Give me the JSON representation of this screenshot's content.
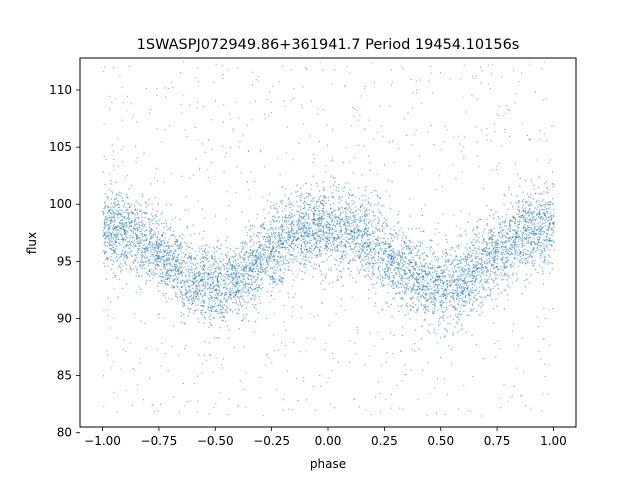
{
  "chart_data": {
    "type": "scatter",
    "title": "1SWASPJ072949.86+361941.7 Period 19454.10156s",
    "xlabel": "phase",
    "ylabel": "flux",
    "xlim": [
      -1.1,
      1.1
    ],
    "ylim": [
      80.5,
      112.8
    ],
    "x_ticks": [
      -1.0,
      -0.75,
      -0.5,
      -0.25,
      0.0,
      0.25,
      0.5,
      0.75,
      1.0
    ],
    "x_tick_labels": [
      "−1.00",
      "−0.75",
      "−0.50",
      "−0.25",
      "0.00",
      "0.25",
      "0.50",
      "0.75",
      "1.00"
    ],
    "y_ticks": [
      80,
      85,
      90,
      95,
      100,
      105,
      110
    ],
    "y_tick_labels": [
      "80",
      "85",
      "90",
      "95",
      "100",
      "105",
      "110"
    ],
    "grid": false,
    "legend": "none",
    "marker_color": "#1f77b4",
    "series": [
      {
        "x": [
          -1.0,
          -0.9,
          -0.8,
          -0.7,
          -0.6,
          -0.5,
          -0.4,
          -0.3,
          -0.2,
          -0.1,
          0.0,
          0.1,
          0.2,
          0.3,
          0.4,
          0.5,
          0.6,
          0.7,
          0.8,
          0.9,
          1.0
        ],
        "y": [
          98.1,
          97.6,
          96.6,
          95.1,
          93.4,
          92.6,
          93.3,
          95.0,
          96.7,
          97.8,
          98.1,
          97.6,
          96.6,
          95.1,
          93.4,
          92.6,
          93.3,
          95.0,
          96.7,
          97.8,
          98.1
        ],
        "band_halfwidth": 3.2,
        "outlier_range": [
          81.5,
          112.5
        ]
      }
    ]
  }
}
